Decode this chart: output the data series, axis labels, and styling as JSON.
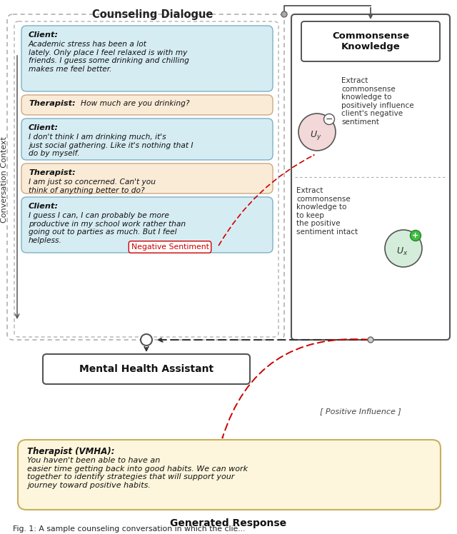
{
  "bg_color": "#ffffff",
  "title": "Counseling Dialogue",
  "conv_context_label": "Conversation Context",
  "client_box_color": "#d6ecf3",
  "therapist_box_color": "#faebd7",
  "ck_box_color": "#ffffff",
  "generated_box_color": "#fdf6dc",
  "mha_box_color": "#ffffff",
  "neg_circle_color": "#f2d8d8",
  "pos_circle_color": "#d4edda",
  "client_1_bold": "Client:",
  "client_1_text": " Academic stress has been a lot\nlately. Only place I feel relaxed is with my\nfriends. I guess some drinking and chilling\nmakes me feel better.",
  "therapist_1_bold": "Therapist:",
  "therapist_1_text": " How much are you drinking?",
  "client_2_bold": "Client:",
  "client_2_text": " I don't think I am drinking much, it's\njust social gathering. Like it's nothing that I\ndo by myself.",
  "therapist_2_bold": "Therapist:",
  "therapist_2_text": " I am just so concerned. Can't you\nthink of anything better to do?",
  "client_3_bold": "Client:",
  "client_3_text": " I guess I can, I can probably be more\nproductive in my school work rather than\ngoing out to parties as much. But I feel\nhelpless.",
  "neg_sentiment_label": "Negative Sentiment",
  "pos_influence_label": "[ Positive Influence ]",
  "ck_title": "Commonsense\nKnowledge",
  "ck_text1": "Extract\ncommonsense\nknowledge to\npositively influence\nclient's negative\nsentiment",
  "ck_text2": "Extract\ncommonsense\nknowledge to\nto keep\nthe positive\nsentiment intact",
  "mha_label": "Mental Health Assistant",
  "generated_bold": "Therapist (VMHA):",
  "generated_text": "  You haven't been able to have an\neasier time getting back into good habits. We can work\ntogether to identify strategies that will support your\njourney toward positive habits.",
  "generated_label": "Generated Response",
  "caption": "Fig. 1: A sample counseling conversation in which the clie..."
}
